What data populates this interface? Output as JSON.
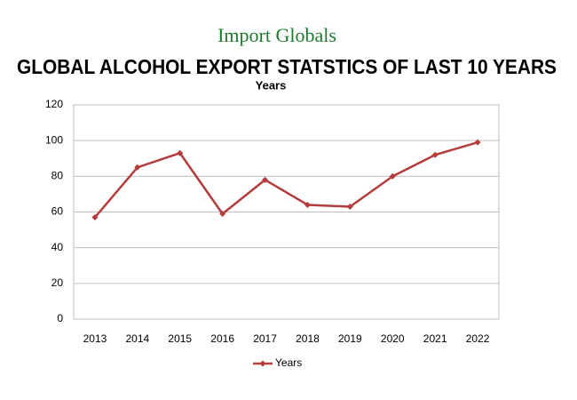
{
  "brand": "Import Globals",
  "chart_data": {
    "type": "line",
    "title": "GLOBAL ALCOHOL EXPORT STATSTICS OF LAST 10 YEARS",
    "subtitle": "Years",
    "categories": [
      "2013",
      "2014",
      "2015",
      "2016",
      "2017",
      "2018",
      "2019",
      "2020",
      "2021",
      "2022"
    ],
    "series": [
      {
        "name": "Years",
        "color": "#b33c3c",
        "values": [
          57,
          85,
          93,
          59,
          78,
          64,
          63,
          80,
          92,
          99
        ]
      }
    ],
    "ylim": [
      0,
      120
    ],
    "yticks": [
      0,
      20,
      40,
      60,
      80,
      100,
      120
    ],
    "grid": true,
    "legend": "bottom"
  }
}
